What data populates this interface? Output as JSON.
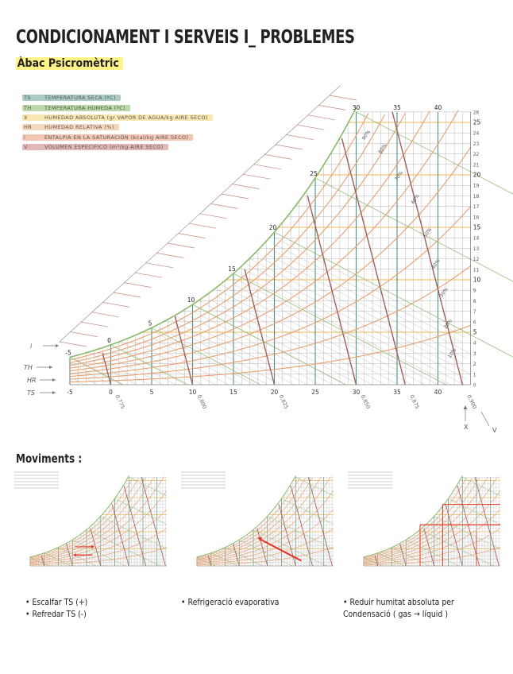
{
  "header": {
    "title": "CONDICIONAMENT I SERVEIS I_ PROBLEMES",
    "subtitle": "Àbac Psicromètric"
  },
  "legend": [
    {
      "abbr": "TS",
      "label": "TEMPERATURA SECA  (ºC)",
      "color": "#a9ccc7"
    },
    {
      "abbr": "TH",
      "label": "TEMPERATURA HUMEDA  (ºC)",
      "color": "#bcd9a8"
    },
    {
      "abbr": "X",
      "label": "HUMEDAD ABSOLUTA  (gr VAPOR DE AGUA/kg AIRE SECO)",
      "color": "#f8e7b0"
    },
    {
      "abbr": "HR",
      "label": "HUMEDAD RELATIVA  (%)",
      "color": "#f8d7bf"
    },
    {
      "abbr": "i",
      "label": "ENTALPIA EN LA SATURACIÓN  (kcal/kg AIRE SECO)",
      "color": "#f4c7b4"
    },
    {
      "abbr": "V",
      "label": "VOLUMEN ESPECIFICO  (m³/kg AIRE SECO)",
      "color": "#e2b9b6"
    }
  ],
  "abac": {
    "ts_ticks": [
      "-5",
      "0",
      "5",
      "10",
      "15",
      "20",
      "25",
      "30",
      "35",
      "40"
    ],
    "x_ticks": [
      "0",
      "1",
      "2",
      "3",
      "4",
      "5",
      "6",
      "7",
      "8",
      "9",
      "10",
      "11",
      "12",
      "13",
      "14",
      "15",
      "16",
      "17",
      "18",
      "19",
      "20",
      "21",
      "22",
      "23",
      "24",
      "25",
      "26"
    ],
    "x_major": [
      "5",
      "10",
      "15",
      "20",
      "25"
    ],
    "th_labels": [
      "-5",
      "0",
      "5",
      "10",
      "15",
      "20",
      "25",
      "30",
      "35",
      "40"
    ],
    "v_labels": [
      "0,775",
      "0,800",
      "0,825",
      "0,850",
      "0,875",
      "0,900"
    ],
    "hr_labels": [
      "90%",
      "80%",
      "70%",
      "60%",
      "50%",
      "40%",
      "30%",
      "20%",
      "10%"
    ],
    "side_labels": {
      "i": "i",
      "th": "TH",
      "hr": "HR",
      "ts": "TS",
      "x": "X",
      "v": "V"
    }
  },
  "movements": {
    "title": "Moviments :",
    "notes": [
      {
        "lines": [
          "• Escalfar TS (+)",
          "• Refredar TS (-)"
        ]
      },
      {
        "lines": [
          "• Refrigeració evaporativa"
        ]
      },
      {
        "lines": [
          "• Reduir humitat absoluta  per",
          "Condensació ( gas → líquid )"
        ]
      }
    ]
  },
  "colors": {
    "ts": "#4f8f87",
    "th": "#8bb86a",
    "x": "#f0c674",
    "hr": "#e8a070",
    "i": "#d9774f",
    "v": "#a0605a",
    "mark": "#e63222"
  }
}
